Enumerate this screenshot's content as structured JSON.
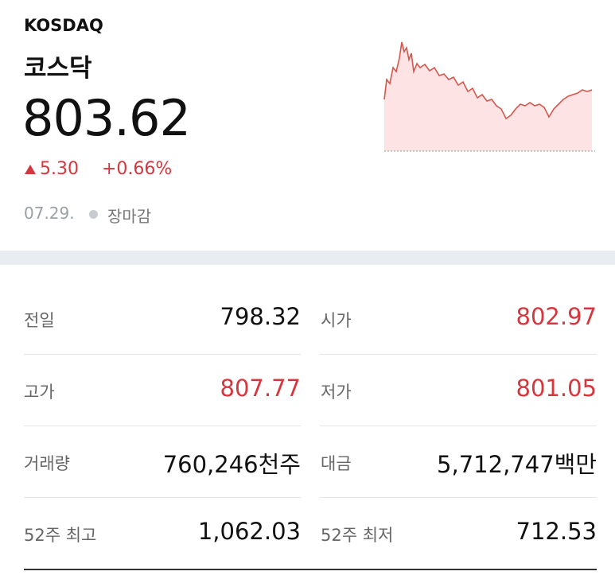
{
  "header": {
    "code": "KOSDAQ",
    "name": "코스닥",
    "price": "803.62",
    "change": "5.30",
    "change_pct": "+0.66%",
    "date": "07.29.",
    "status": "장마감"
  },
  "table": {
    "rows": [
      [
        "전일",
        "798.32",
        "시가",
        "802.97"
      ],
      [
        "고가",
        "807.77",
        "저가",
        "801.05"
      ],
      [
        "거래량",
        "760,246천주",
        "대금",
        "5,712,747백만"
      ],
      [
        "52주 최고",
        "1,062.03",
        "52주 최저",
        "712.53"
      ]
    ]
  }
}
